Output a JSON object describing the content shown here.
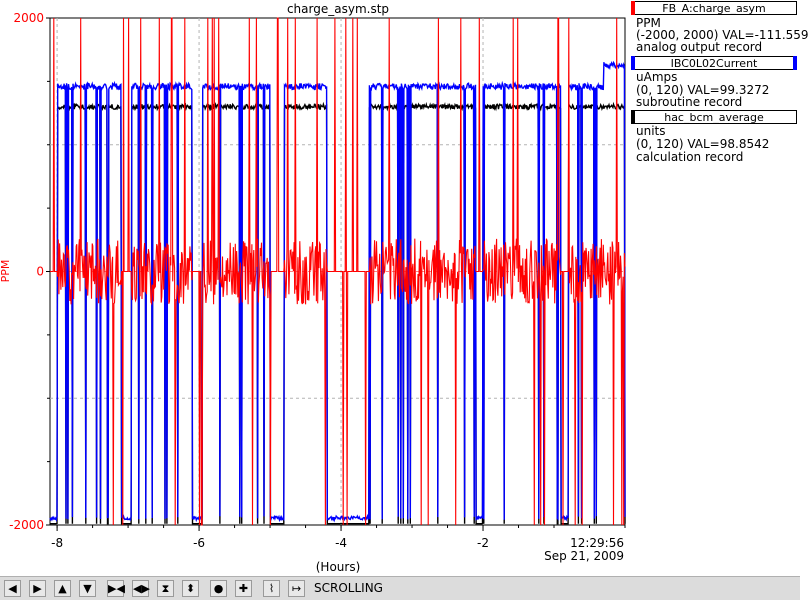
{
  "chart_data": {
    "type": "line",
    "title": "charge_asym.stp",
    "xlabel": "(Hours)",
    "ylabel": "PPM",
    "ylim": [
      -2000,
      2000
    ],
    "xlim": [
      -8.1,
      0
    ],
    "y_ticks": [
      "2000",
      "0",
      "-2000"
    ],
    "x_ticks": [
      "-8",
      "-6",
      "-4",
      "-2"
    ],
    "end_time": "12:29:56",
    "end_date": "Sep 21, 2009",
    "grid": true,
    "legend_position": "right",
    "series": [
      {
        "name": "FB_A:charge_asym",
        "color": "#ff0000"
      },
      {
        "name": "IBC0L02Current",
        "color": "#0000ff"
      },
      {
        "name": "hac_bcm_average",
        "color": "#000000"
      }
    ],
    "beam_on_segments_hours": [
      [
        -8.0,
        -7.1
      ],
      [
        -6.95,
        -6.1
      ],
      [
        -5.95,
        -5.0
      ],
      [
        -4.8,
        -4.2
      ],
      [
        -3.6,
        -2.1
      ],
      [
        -2.0,
        -0.9
      ],
      [
        -0.8,
        0.0
      ]
    ]
  },
  "legend": [
    {
      "name": "FB_A:charge_asym",
      "unit": "PPM",
      "range_val": "(-2000, 2000) VAL=-111.559",
      "record": "analog output record",
      "color": "#ff0000",
      "swatch_side": "left"
    },
    {
      "name": "IBC0L02Current",
      "unit": "uAmps",
      "range_val": "(0, 120) VAL=99.3272",
      "record": "subroutine record",
      "color": "#0000ff",
      "swatch_side": "both"
    },
    {
      "name": "hac_bcm_average",
      "unit": "units",
      "range_val": "(0, 120) VAL=98.8542",
      "record": "calculation record",
      "color": "#000000",
      "swatch_side": "left"
    }
  ],
  "toolbar": {
    "status": "SCROLLING",
    "buttons": [
      {
        "icon": "arrow-left-icon",
        "glyph": "◀"
      },
      {
        "icon": "arrow-right-icon",
        "glyph": "▶"
      },
      {
        "icon": "arrow-up-icon",
        "glyph": "▲"
      },
      {
        "icon": "arrow-down-icon",
        "glyph": "▼"
      },
      {
        "icon": "zoom-in-x-icon",
        "glyph": "▶◀"
      },
      {
        "icon": "zoom-out-x-icon",
        "glyph": "◀▶"
      },
      {
        "icon": "zoom-in-y-icon",
        "glyph": "⧗"
      },
      {
        "icon": "zoom-out-y-icon",
        "glyph": "⬍"
      },
      {
        "icon": "target-icon",
        "glyph": "●"
      },
      {
        "icon": "crosshair-icon",
        "glyph": "✚"
      },
      {
        "icon": "autoscale-icon",
        "glyph": "⌇"
      },
      {
        "icon": "scroll-icon",
        "glyph": "↦"
      }
    ]
  }
}
